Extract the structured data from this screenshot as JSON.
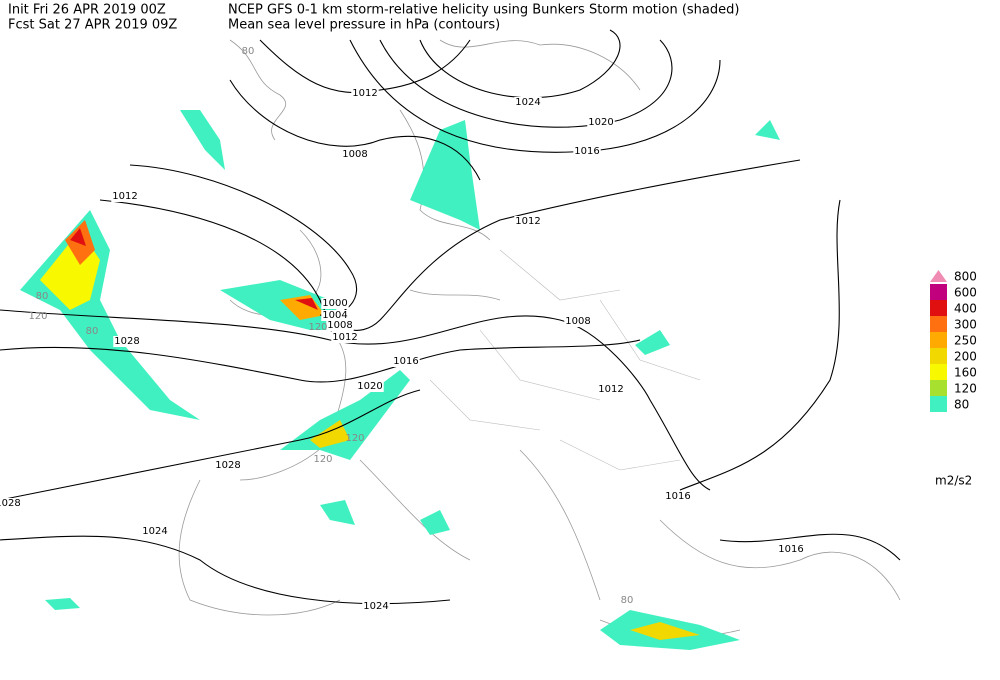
{
  "header": {
    "init": "Init  Fri 26 APR 2019 00Z",
    "fcst": "Fcst Sat 27 APR 2019 09Z",
    "title": "NCEP GFS 0-1 km storm-relative helicity using Bunkers Storm motion (shaded)",
    "subtitle": "Mean sea level pressure in hPa (contours)"
  },
  "legend": {
    "levels": [
      {
        "value": 800,
        "color": "#f08cb4"
      },
      {
        "value": 600,
        "color": "#c0007c"
      },
      {
        "value": 400,
        "color": "#e01010"
      },
      {
        "value": 300,
        "color": "#ff7010"
      },
      {
        "value": 250,
        "color": "#ffaa00"
      },
      {
        "value": 200,
        "color": "#f0d800"
      },
      {
        "value": 160,
        "color": "#f8f800"
      },
      {
        "value": 120,
        "color": "#a8e030"
      },
      {
        "value": 80,
        "color": "#40f0c0"
      }
    ],
    "unit": "m2/s2"
  },
  "contour_labels": [
    1012,
    1024,
    1020,
    1016,
    1008,
    1012,
    1012,
    1000,
    1004,
    1008,
    1012,
    1008,
    1016,
    1028,
    1012,
    1020,
    1028,
    1016,
    1028,
    1024,
    1016,
    1024
  ],
  "shade_labels": [
    80,
    80,
    120,
    80,
    120,
    120,
    120,
    80
  ]
}
